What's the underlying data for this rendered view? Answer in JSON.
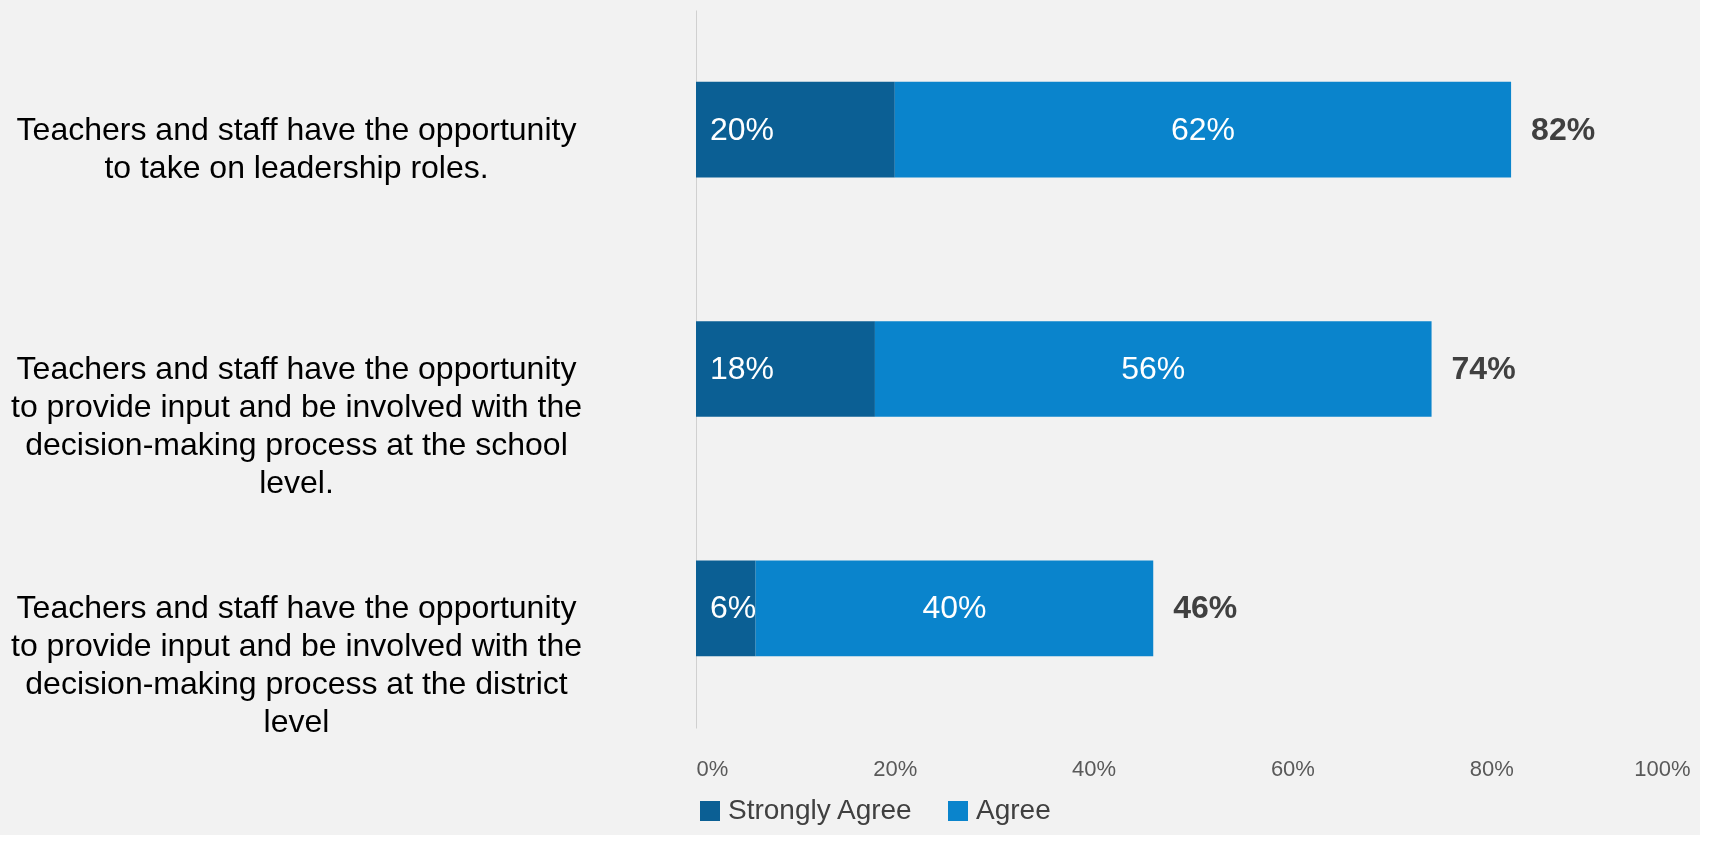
{
  "chart_data": {
    "type": "bar",
    "orientation": "horizontal",
    "stacked": true,
    "categories": [
      "Teachers and staff have the opportunity to take on leadership roles.",
      "Teachers and staff have the opportunity to provide input and be involved with the decision-making process at the school level.",
      "Teachers and staff have the opportunity to provide input and be involved with the decision-making process at the district level"
    ],
    "series": [
      {
        "name": "Strongly Agree",
        "color": "#0b5f94",
        "values": [
          20,
          18,
          6
        ],
        "value_labels": [
          "20%",
          "18%",
          "6%"
        ]
      },
      {
        "name": "Agree",
        "color": "#0a84cc",
        "values": [
          62,
          56,
          40
        ],
        "value_labels": [
          "62%",
          "56%",
          "40%"
        ]
      }
    ],
    "totals": [
      "82%",
      "74%",
      "46%"
    ],
    "xlim": [
      0,
      100
    ],
    "xticks": [
      {
        "value": 0,
        "label": "0%"
      },
      {
        "value": 20,
        "label": "20%"
      },
      {
        "value": 40,
        "label": "40%"
      },
      {
        "value": 60,
        "label": "60%"
      },
      {
        "value": 80,
        "label": "80%"
      },
      {
        "value": 100,
        "label": "100%"
      }
    ],
    "grid": false,
    "legend": "bottom"
  }
}
